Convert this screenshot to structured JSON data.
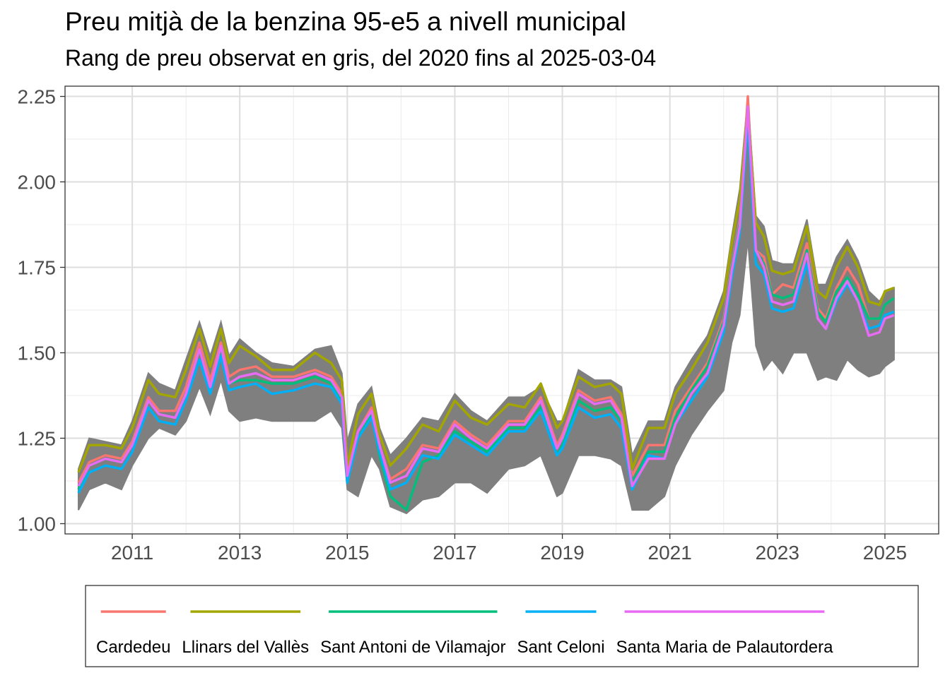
{
  "chart_data": {
    "type": "line",
    "title": "Preu mitjà de la benzina 95-e5 a nivell municipal",
    "subtitle": "Rang de preu observat en gris, del 2020 fins al 2025-03-04",
    "xlabel": "",
    "ylabel": "",
    "xlim": [
      2009.75,
      2026.0
    ],
    "ylim": [
      0.97,
      2.28
    ],
    "x_ticks": [
      2011,
      2013,
      2015,
      2017,
      2019,
      2021,
      2023,
      2025
    ],
    "x_tick_labels": [
      "2011",
      "2013",
      "2015",
      "2017",
      "2019",
      "2021",
      "2023",
      "2025"
    ],
    "y_ticks": [
      1.0,
      1.25,
      1.5,
      1.75,
      2.0,
      2.25
    ],
    "y_tick_labels": [
      "1.00",
      "1.25",
      "1.50",
      "1.75",
      "2.00",
      "2.25"
    ],
    "grid": true,
    "legend_position": "bottom",
    "range_band": {
      "color": "#7f7f7f",
      "x": [
        2010.0,
        2010.2,
        2010.5,
        2010.8,
        2011.0,
        2011.3,
        2011.5,
        2011.8,
        2012.0,
        2012.25,
        2012.45,
        2012.65,
        2012.8,
        2013.0,
        2013.3,
        2013.6,
        2014.0,
        2014.4,
        2014.7,
        2014.9,
        2015.0,
        2015.2,
        2015.45,
        2015.6,
        2015.8,
        2016.1,
        2016.4,
        2016.7,
        2017.0,
        2017.3,
        2017.6,
        2018.0,
        2018.3,
        2018.6,
        2018.9,
        2019.0,
        2019.3,
        2019.6,
        2019.9,
        2020.1,
        2020.3,
        2020.6,
        2020.9,
        2021.1,
        2021.4,
        2021.7,
        2022.0,
        2022.15,
        2022.3,
        2022.45,
        2022.6,
        2022.75,
        2022.9,
        2023.1,
        2023.3,
        2023.55,
        2023.75,
        2023.9,
        2024.1,
        2024.3,
        2024.5,
        2024.7,
        2024.9,
        2025.0,
        2025.17
      ],
      "low": [
        1.04,
        1.1,
        1.12,
        1.1,
        1.17,
        1.25,
        1.28,
        1.26,
        1.3,
        1.4,
        1.32,
        1.42,
        1.33,
        1.3,
        1.31,
        1.3,
        1.3,
        1.3,
        1.33,
        1.28,
        1.1,
        1.08,
        1.2,
        1.16,
        1.05,
        1.03,
        1.07,
        1.08,
        1.12,
        1.12,
        1.09,
        1.16,
        1.17,
        1.2,
        1.08,
        1.09,
        1.2,
        1.2,
        1.19,
        1.17,
        1.04,
        1.04,
        1.08,
        1.17,
        1.26,
        1.33,
        1.39,
        1.53,
        1.61,
        1.83,
        1.52,
        1.45,
        1.48,
        1.44,
        1.5,
        1.5,
        1.42,
        1.43,
        1.42,
        1.48,
        1.45,
        1.43,
        1.44,
        1.46,
        1.48
      ],
      "high": [
        1.16,
        1.25,
        1.24,
        1.23,
        1.3,
        1.44,
        1.41,
        1.39,
        1.48,
        1.59,
        1.49,
        1.59,
        1.49,
        1.54,
        1.5,
        1.47,
        1.46,
        1.51,
        1.52,
        1.44,
        1.24,
        1.35,
        1.4,
        1.28,
        1.2,
        1.25,
        1.31,
        1.3,
        1.38,
        1.33,
        1.3,
        1.37,
        1.37,
        1.4,
        1.3,
        1.3,
        1.45,
        1.42,
        1.42,
        1.4,
        1.2,
        1.3,
        1.3,
        1.4,
        1.48,
        1.55,
        1.68,
        1.84,
        1.98,
        2.25,
        1.9,
        1.87,
        1.77,
        1.76,
        1.76,
        1.89,
        1.7,
        1.7,
        1.78,
        1.83,
        1.77,
        1.68,
        1.65,
        1.68,
        1.69
      ]
    },
    "series": [
      {
        "name": "Cardedeu",
        "color": "#F8766D",
        "x": [
          2010.0,
          2010.2,
          2010.5,
          2010.8,
          2011.0,
          2011.3,
          2011.5,
          2011.8,
          2012.0,
          2012.25,
          2012.45,
          2012.65,
          2012.8,
          2013.0,
          2013.3,
          2013.6,
          2014.0,
          2014.4,
          2014.7,
          2014.9,
          2015.0,
          2015.2,
          2015.45,
          2015.6,
          2015.8,
          2016.1,
          2016.4,
          2016.7,
          2017.0,
          2017.3,
          2017.6,
          2018.0,
          2018.3,
          2018.6,
          2018.9,
          2019.0,
          2019.3,
          2019.6,
          2019.9,
          2020.1,
          2020.3,
          2020.6,
          2020.9,
          2021.1,
          2021.4,
          2021.7,
          2022.0,
          2022.15,
          2022.3,
          2022.45,
          2022.6,
          2022.75,
          2022.9,
          2023.1,
          2023.3,
          2023.55,
          2023.75,
          2023.9,
          2024.1,
          2024.3,
          2024.5,
          2024.7,
          2024.9,
          2025.0,
          2025.17
        ],
        "y": [
          1.12,
          1.18,
          1.2,
          1.19,
          1.24,
          1.37,
          1.33,
          1.33,
          1.4,
          1.53,
          1.42,
          1.53,
          1.43,
          1.45,
          1.46,
          1.43,
          1.43,
          1.45,
          1.43,
          1.38,
          1.15,
          1.27,
          1.34,
          1.23,
          1.13,
          1.16,
          1.23,
          1.22,
          1.3,
          1.26,
          1.23,
          1.3,
          1.3,
          1.37,
          1.23,
          1.26,
          1.39,
          1.36,
          1.37,
          1.32,
          1.14,
          1.23,
          1.23,
          1.33,
          1.4,
          1.47,
          1.6,
          1.76,
          1.89,
          2.25,
          1.8,
          1.78,
          1.67,
          1.7,
          1.69,
          1.82,
          1.63,
          1.6,
          1.69,
          1.75,
          1.7,
          1.6,
          1.6,
          1.64,
          1.66
        ]
      },
      {
        "name": "Llinars del Vallès",
        "color": "#A3A500",
        "x": [
          2010.0,
          2010.2,
          2010.5,
          2010.8,
          2011.0,
          2011.3,
          2011.5,
          2011.8,
          2012.0,
          2012.25,
          2012.45,
          2012.65,
          2012.8,
          2013.0,
          2013.3,
          2013.6,
          2014.0,
          2014.4,
          2014.7,
          2014.9,
          2015.0,
          2015.2,
          2015.45,
          2015.6,
          2015.8,
          2016.1,
          2016.4,
          2016.7,
          2017.0,
          2017.3,
          2017.6,
          2018.0,
          2018.3,
          2018.6,
          2018.9,
          2019.0,
          2019.3,
          2019.6,
          2019.9,
          2020.1,
          2020.3,
          2020.6,
          2020.9,
          2021.1,
          2021.4,
          2021.7,
          2022.0,
          2022.15,
          2022.3,
          2022.45,
          2022.6,
          2022.75,
          2022.9,
          2023.1,
          2023.3,
          2023.55,
          2023.75,
          2023.9,
          2024.1,
          2024.3,
          2024.5,
          2024.7,
          2024.9,
          2025.0,
          2025.17
        ],
        "y": [
          1.15,
          1.23,
          1.23,
          1.22,
          1.28,
          1.42,
          1.38,
          1.37,
          1.45,
          1.57,
          1.46,
          1.57,
          1.47,
          1.52,
          1.49,
          1.45,
          1.45,
          1.5,
          1.47,
          1.42,
          1.17,
          1.32,
          1.38,
          1.26,
          1.17,
          1.22,
          1.29,
          1.27,
          1.36,
          1.31,
          1.29,
          1.35,
          1.34,
          1.41,
          1.28,
          1.3,
          1.43,
          1.4,
          1.41,
          1.38,
          1.16,
          1.28,
          1.28,
          1.38,
          1.45,
          1.53,
          1.66,
          1.82,
          1.95,
          2.22,
          1.88,
          1.84,
          1.74,
          1.73,
          1.74,
          1.87,
          1.68,
          1.66,
          1.75,
          1.81,
          1.75,
          1.65,
          1.64,
          1.68,
          1.69
        ]
      },
      {
        "name": "Sant Antoni de Vilamajor",
        "color": "#00BF7D",
        "x": [
          2010.0,
          2010.2,
          2010.5,
          2010.8,
          2011.0,
          2011.3,
          2011.5,
          2011.8,
          2012.0,
          2012.25,
          2012.45,
          2012.65,
          2012.8,
          2013.0,
          2013.3,
          2013.6,
          2014.0,
          2014.4,
          2014.7,
          2014.9,
          2015.0,
          2015.2,
          2015.45,
          2015.6,
          2015.8,
          2016.1,
          2016.4,
          2016.7,
          2017.0,
          2017.3,
          2017.6,
          2018.0,
          2018.3,
          2018.6,
          2018.9,
          2019.0,
          2019.3,
          2019.6,
          2019.9,
          2020.1,
          2020.3,
          2020.6,
          2020.9,
          2021.1,
          2021.4,
          2021.7,
          2022.0,
          2022.15,
          2022.3,
          2022.45,
          2022.6,
          2022.75,
          2022.9,
          2023.1,
          2023.3,
          2023.55,
          2023.75,
          2023.9,
          2024.1,
          2024.3,
          2024.5,
          2024.7,
          2024.9,
          2025.0,
          2025.17
        ],
        "y": [
          1.1,
          1.17,
          1.19,
          1.18,
          1.23,
          1.36,
          1.32,
          1.31,
          1.38,
          1.51,
          1.4,
          1.51,
          1.41,
          1.42,
          1.42,
          1.41,
          1.41,
          1.43,
          1.41,
          1.36,
          1.13,
          1.25,
          1.32,
          1.2,
          1.08,
          1.04,
          1.18,
          1.2,
          1.27,
          1.24,
          1.21,
          1.28,
          1.28,
          1.34,
          1.2,
          1.23,
          1.36,
          1.33,
          1.34,
          1.3,
          1.12,
          1.21,
          1.21,
          1.31,
          1.39,
          1.46,
          1.59,
          1.75,
          1.88,
          2.2,
          1.8,
          1.76,
          1.67,
          1.66,
          1.67,
          1.8,
          1.62,
          1.59,
          1.68,
          1.72,
          1.67,
          1.6,
          1.6,
          1.64,
          1.66
        ]
      },
      {
        "name": "Sant Celoni",
        "color": "#00B0F6",
        "x": [
          2010.0,
          2010.2,
          2010.5,
          2010.8,
          2011.0,
          2011.3,
          2011.5,
          2011.8,
          2012.0,
          2012.25,
          2012.45,
          2012.65,
          2012.8,
          2013.0,
          2013.3,
          2013.6,
          2014.0,
          2014.4,
          2014.7,
          2014.9,
          2015.0,
          2015.2,
          2015.45,
          2015.6,
          2015.8,
          2016.1,
          2016.4,
          2016.7,
          2017.0,
          2017.3,
          2017.6,
          2018.0,
          2018.3,
          2018.6,
          2018.9,
          2019.0,
          2019.3,
          2019.6,
          2019.9,
          2020.1,
          2020.3,
          2020.6,
          2020.9,
          2021.1,
          2021.4,
          2021.7,
          2022.0,
          2022.15,
          2022.3,
          2022.45,
          2022.6,
          2022.75,
          2022.9,
          2023.1,
          2023.3,
          2023.55,
          2023.75,
          2023.9,
          2024.1,
          2024.3,
          2024.5,
          2024.7,
          2024.9,
          2025.0,
          2025.17
        ],
        "y": [
          1.09,
          1.15,
          1.17,
          1.16,
          1.21,
          1.34,
          1.3,
          1.29,
          1.36,
          1.48,
          1.38,
          1.49,
          1.39,
          1.4,
          1.41,
          1.38,
          1.39,
          1.41,
          1.4,
          1.35,
          1.12,
          1.25,
          1.31,
          1.21,
          1.1,
          1.12,
          1.2,
          1.19,
          1.26,
          1.23,
          1.2,
          1.27,
          1.27,
          1.33,
          1.2,
          1.22,
          1.34,
          1.31,
          1.32,
          1.28,
          1.1,
          1.2,
          1.19,
          1.29,
          1.36,
          1.43,
          1.56,
          1.72,
          1.85,
          2.18,
          1.76,
          1.73,
          1.63,
          1.62,
          1.63,
          1.76,
          1.6,
          1.57,
          1.65,
          1.7,
          1.65,
          1.57,
          1.58,
          1.61,
          1.62
        ]
      },
      {
        "name": "Santa Maria de Palautordera",
        "color": "#E76BF3",
        "x": [
          2010.0,
          2010.2,
          2010.5,
          2010.8,
          2011.0,
          2011.3,
          2011.5,
          2011.8,
          2012.0,
          2012.25,
          2012.45,
          2012.65,
          2012.8,
          2013.0,
          2013.3,
          2013.6,
          2014.0,
          2014.4,
          2014.7,
          2014.9,
          2015.0,
          2015.2,
          2015.45,
          2015.6,
          2015.8,
          2016.1,
          2016.4,
          2016.7,
          2017.0,
          2017.3,
          2017.6,
          2018.0,
          2018.3,
          2018.6,
          2018.9,
          2019.0,
          2019.3,
          2019.6,
          2019.9,
          2020.1,
          2020.3,
          2020.6,
          2020.9,
          2021.1,
          2021.4,
          2021.7,
          2022.0,
          2022.15,
          2022.3,
          2022.45,
          2022.6,
          2022.75,
          2022.9,
          2023.1,
          2023.3,
          2023.55,
          2023.75,
          2023.9,
          2024.1,
          2024.3,
          2024.5,
          2024.7,
          2024.9,
          2025.0,
          2025.17
        ],
        "y": [
          1.11,
          1.17,
          1.19,
          1.18,
          1.23,
          1.36,
          1.32,
          1.31,
          1.38,
          1.51,
          1.4,
          1.52,
          1.41,
          1.43,
          1.44,
          1.42,
          1.42,
          1.44,
          1.42,
          1.37,
          1.14,
          1.27,
          1.33,
          1.23,
          1.12,
          1.14,
          1.22,
          1.21,
          1.29,
          1.25,
          1.22,
          1.29,
          1.29,
          1.36,
          1.22,
          1.25,
          1.38,
          1.35,
          1.36,
          1.31,
          1.11,
          1.19,
          1.19,
          1.29,
          1.38,
          1.44,
          1.58,
          1.74,
          1.87,
          2.22,
          1.8,
          1.75,
          1.65,
          1.64,
          1.65,
          1.79,
          1.6,
          1.57,
          1.66,
          1.71,
          1.65,
          1.55,
          1.56,
          1.6,
          1.61
        ]
      }
    ]
  }
}
